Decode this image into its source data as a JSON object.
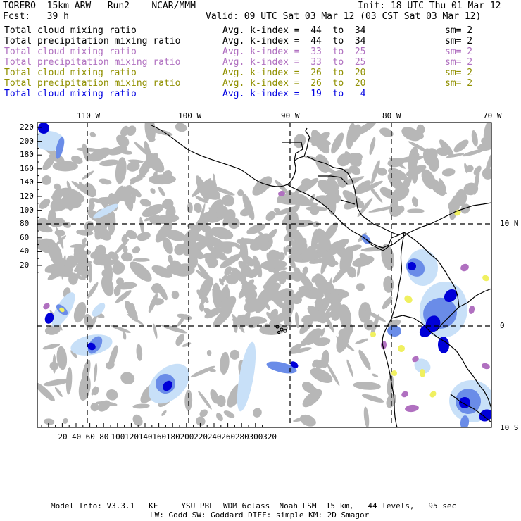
{
  "header": {
    "model": "TORERO  15km ARW   Run2    NCAR/MMM",
    "init": "Init: 18 UTC Thu 01 Mar 12",
    "fcst": "Fcst:   39 h",
    "valid": "Valid: 09 UTC Sat 03 Mar 12 (03 CST Sat 03 Mar 12)"
  },
  "legend": [
    {
      "field": "Total cloud mixing ratio",
      "kindex": "Avg. k-index =  44  to  34",
      "sm": "sm= 2",
      "color": "#000000"
    },
    {
      "field": "Total precipitation mixing ratio",
      "kindex": "Avg. k-index =  44  to  34",
      "sm": "sm= 2",
      "color": "#000000"
    },
    {
      "field": "Total cloud mixing ratio",
      "kindex": "Avg. k-index =  33  to  25",
      "sm": "sm= 2",
      "color": "#b070c0"
    },
    {
      "field": "Total precipitation mixing ratio",
      "kindex": "Avg. k-index =  33  to  25",
      "sm": "sm= 2",
      "color": "#b070c0"
    },
    {
      "field": "Total cloud mixing ratio",
      "kindex": "Avg. k-index =  26  to  20",
      "sm": "sm= 2",
      "color": "#909000"
    },
    {
      "field": "Total precipitation mixing ratio",
      "kindex": "Avg. k-index =  26  to  20",
      "sm": "sm= 2",
      "color": "#909000"
    },
    {
      "field": "Total cloud mixing ratio",
      "kindex": "Avg. k-index =  19  to   4",
      "sm": "",
      "color": "#0000e0"
    }
  ],
  "axes": {
    "lon_labels": [
      "110 W",
      "100 W",
      "90 W",
      "80 W",
      "70 W"
    ],
    "lat_labels": [
      "10 N",
      "0",
      "10 S"
    ],
    "left_ticks": [
      "220",
      "200",
      "180",
      "160",
      "140",
      "120",
      "100",
      "80",
      "60",
      "40",
      "20"
    ],
    "bottom_ticks": [
      "20",
      "40",
      "60",
      "80",
      "100",
      "120",
      "140",
      "160",
      "180",
      "200",
      "220",
      "240",
      "260",
      "280",
      "300",
      "320"
    ]
  },
  "footer": {
    "line1": "Model Info: V3.3.1   KF     YSU PBL  WDM 6class  Noah LSM  15 km,   44 levels,   95 sec",
    "line2": "LW: Godd SW: Goddard DIFF: simple KM: 2D Smagor"
  },
  "colors": {
    "cloud_gray": "#b4b4b4",
    "precip_light": "#c8e0f8",
    "precip_med": "#6a8ce8",
    "precip_dark": "#0000d8",
    "kindex_purple": "#b070c0",
    "kindex_yellow": "#f0f060",
    "coast": "#000000"
  }
}
